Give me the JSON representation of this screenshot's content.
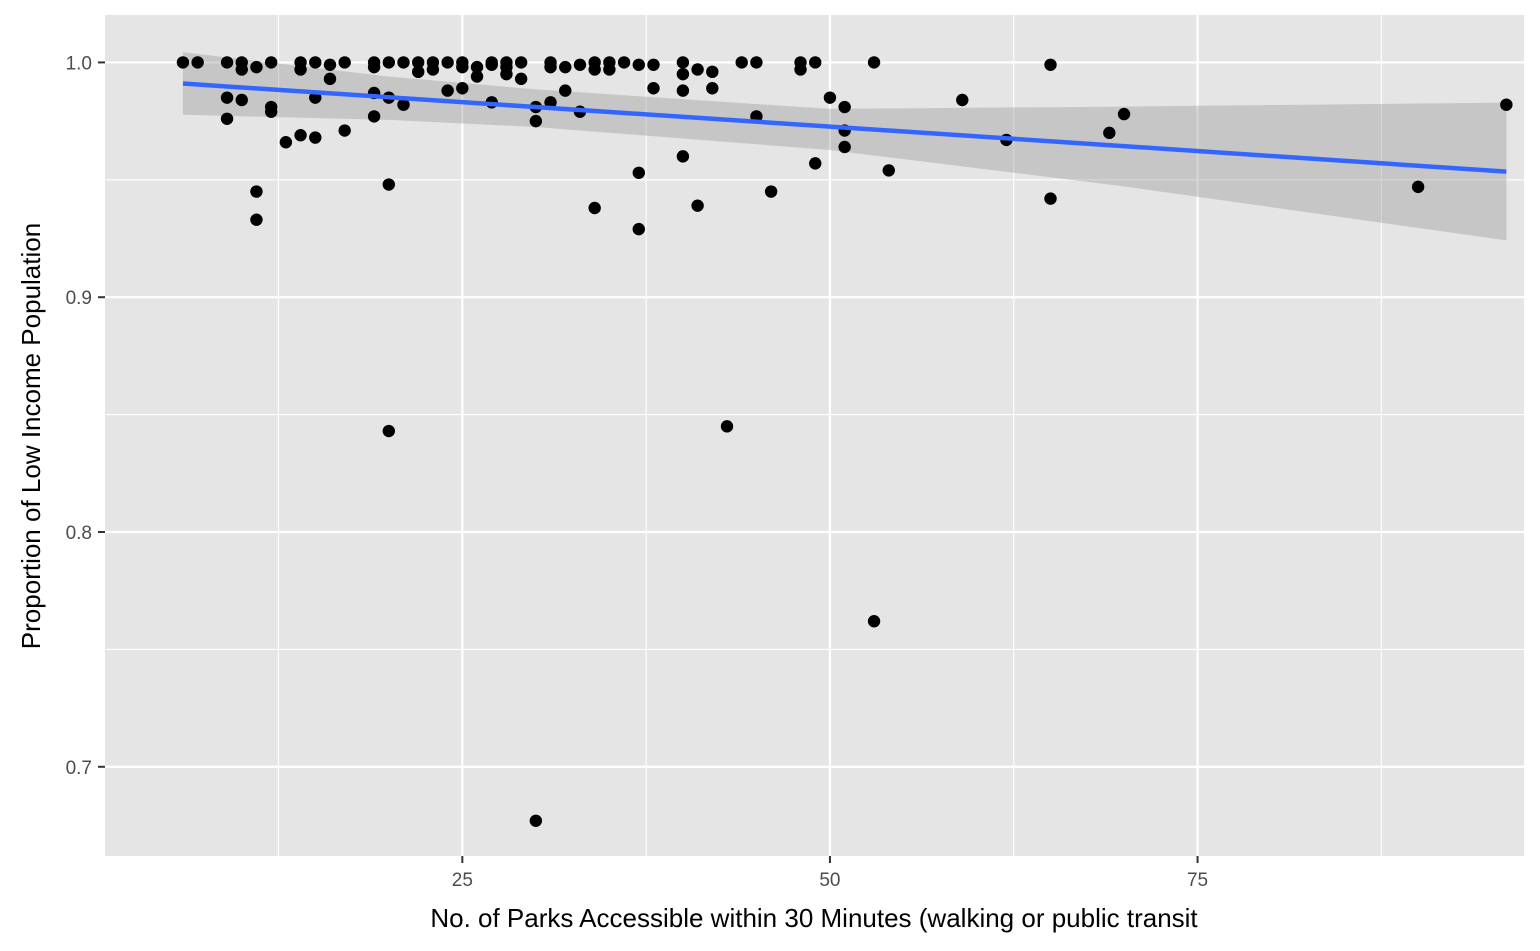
{
  "chart_data": {
    "type": "scatter",
    "xlabel": "No. of Parks Accessible within 30 Minutes (walking or public transit",
    "ylabel": "Proportion of Low Income Population",
    "xlim": [
      0.7,
      97.2
    ],
    "ylim": [
      0.662,
      1.0202
    ],
    "x_ticks": [
      25,
      50,
      75
    ],
    "x_tick_labels": [
      "25",
      "50",
      "75"
    ],
    "x_minor_ticks": [
      12.5,
      37.5,
      62.5,
      87.5
    ],
    "y_ticks": [
      0.7,
      0.8,
      0.9,
      1.0
    ],
    "y_tick_labels": [
      "0.7",
      "0.8",
      "0.9",
      "1.0"
    ],
    "y_minor_ticks": [
      0.75,
      0.85,
      0.95
    ],
    "grid": true,
    "colors": {
      "panel": "#e5e5e5",
      "grid": "#ffffff",
      "points": "#000000",
      "trend": "#3366ff",
      "ribbon": "#999999"
    },
    "points": [
      {
        "x": 6,
        "y": 1.0
      },
      {
        "x": 7,
        "y": 1.0
      },
      {
        "x": 9,
        "y": 1.0
      },
      {
        "x": 10,
        "y": 1.0
      },
      {
        "x": 9,
        "y": 0.985
      },
      {
        "x": 10,
        "y": 0.984
      },
      {
        "x": 10,
        "y": 0.997
      },
      {
        "x": 11,
        "y": 0.998
      },
      {
        "x": 12,
        "y": 1.0
      },
      {
        "x": 12,
        "y": 0.981
      },
      {
        "x": 12,
        "y": 0.979
      },
      {
        "x": 9,
        "y": 0.976
      },
      {
        "x": 11,
        "y": 0.945
      },
      {
        "x": 11,
        "y": 0.933
      },
      {
        "x": 13,
        "y": 0.966
      },
      {
        "x": 14,
        "y": 1.0
      },
      {
        "x": 14,
        "y": 0.997
      },
      {
        "x": 14,
        "y": 0.969
      },
      {
        "x": 15,
        "y": 1.0
      },
      {
        "x": 15,
        "y": 0.985
      },
      {
        "x": 15,
        "y": 0.968
      },
      {
        "x": 16,
        "y": 0.999
      },
      {
        "x": 16,
        "y": 0.993
      },
      {
        "x": 17,
        "y": 1.0
      },
      {
        "x": 17,
        "y": 0.971
      },
      {
        "x": 19,
        "y": 1.0
      },
      {
        "x": 19,
        "y": 0.998
      },
      {
        "x": 19,
        "y": 0.987
      },
      {
        "x": 19,
        "y": 0.977
      },
      {
        "x": 20,
        "y": 1.0
      },
      {
        "x": 20,
        "y": 0.985
      },
      {
        "x": 20,
        "y": 0.948
      },
      {
        "x": 20,
        "y": 0.843
      },
      {
        "x": 21,
        "y": 1.0
      },
      {
        "x": 21,
        "y": 0.982
      },
      {
        "x": 22,
        "y": 1.0
      },
      {
        "x": 22,
        "y": 0.996
      },
      {
        "x": 23,
        "y": 1.0
      },
      {
        "x": 23,
        "y": 0.997
      },
      {
        "x": 24,
        "y": 1.0
      },
      {
        "x": 24,
        "y": 0.988
      },
      {
        "x": 25,
        "y": 1.0
      },
      {
        "x": 25,
        "y": 0.998
      },
      {
        "x": 25,
        "y": 0.989
      },
      {
        "x": 26,
        "y": 0.998
      },
      {
        "x": 26,
        "y": 0.994
      },
      {
        "x": 27,
        "y": 1.0
      },
      {
        "x": 27,
        "y": 0.999
      },
      {
        "x": 27,
        "y": 0.983
      },
      {
        "x": 28,
        "y": 1.0
      },
      {
        "x": 28,
        "y": 0.998
      },
      {
        "x": 28,
        "y": 0.995
      },
      {
        "x": 29,
        "y": 1.0
      },
      {
        "x": 29,
        "y": 0.993
      },
      {
        "x": 30,
        "y": 0.981
      },
      {
        "x": 30,
        "y": 0.975
      },
      {
        "x": 30,
        "y": 0.677
      },
      {
        "x": 31,
        "y": 1.0
      },
      {
        "x": 31,
        "y": 0.998
      },
      {
        "x": 31,
        "y": 0.983
      },
      {
        "x": 32,
        "y": 0.998
      },
      {
        "x": 32,
        "y": 0.988
      },
      {
        "x": 33,
        "y": 0.999
      },
      {
        "x": 33,
        "y": 0.979
      },
      {
        "x": 34,
        "y": 1.0
      },
      {
        "x": 34,
        "y": 0.997
      },
      {
        "x": 34,
        "y": 0.938
      },
      {
        "x": 35,
        "y": 1.0
      },
      {
        "x": 35,
        "y": 0.997
      },
      {
        "x": 36,
        "y": 1.0
      },
      {
        "x": 37,
        "y": 0.999
      },
      {
        "x": 37,
        "y": 0.953
      },
      {
        "x": 37,
        "y": 0.929
      },
      {
        "x": 38,
        "y": 0.999
      },
      {
        "x": 38,
        "y": 0.989
      },
      {
        "x": 40,
        "y": 1.0
      },
      {
        "x": 40,
        "y": 0.995
      },
      {
        "x": 40,
        "y": 0.988
      },
      {
        "x": 40,
        "y": 0.96
      },
      {
        "x": 41,
        "y": 0.997
      },
      {
        "x": 41,
        "y": 0.939
      },
      {
        "x": 42,
        "y": 0.996
      },
      {
        "x": 42,
        "y": 0.989
      },
      {
        "x": 43,
        "y": 0.845
      },
      {
        "x": 44,
        "y": 1.0
      },
      {
        "x": 45,
        "y": 1.0
      },
      {
        "x": 45,
        "y": 0.977
      },
      {
        "x": 46,
        "y": 0.945
      },
      {
        "x": 48,
        "y": 1.0
      },
      {
        "x": 48,
        "y": 0.997
      },
      {
        "x": 49,
        "y": 1.0
      },
      {
        "x": 49,
        "y": 0.957
      },
      {
        "x": 50,
        "y": 0.985
      },
      {
        "x": 51,
        "y": 0.981
      },
      {
        "x": 51,
        "y": 0.971
      },
      {
        "x": 51,
        "y": 0.964
      },
      {
        "x": 53,
        "y": 1.0
      },
      {
        "x": 53,
        "y": 0.762
      },
      {
        "x": 54,
        "y": 0.954
      },
      {
        "x": 59,
        "y": 0.984
      },
      {
        "x": 62,
        "y": 0.967
      },
      {
        "x": 65,
        "y": 0.999
      },
      {
        "x": 65,
        "y": 0.942
      },
      {
        "x": 69,
        "y": 0.97
      },
      {
        "x": 70,
        "y": 0.978
      },
      {
        "x": 90,
        "y": 0.947
      },
      {
        "x": 96,
        "y": 0.982
      }
    ],
    "trend_line": {
      "method": "linear",
      "x": [
        6,
        96
      ],
      "y": [
        0.991,
        0.9535
      ]
    },
    "confidence_band": {
      "x": [
        6,
        20,
        30,
        50,
        70,
        96
      ],
      "upper": [
        1.0043,
        0.994,
        0.9885,
        0.9802,
        0.9812,
        0.9829
      ],
      "lower": [
        0.9777,
        0.9755,
        0.9725,
        0.9627,
        0.9472,
        0.9242
      ]
    }
  }
}
